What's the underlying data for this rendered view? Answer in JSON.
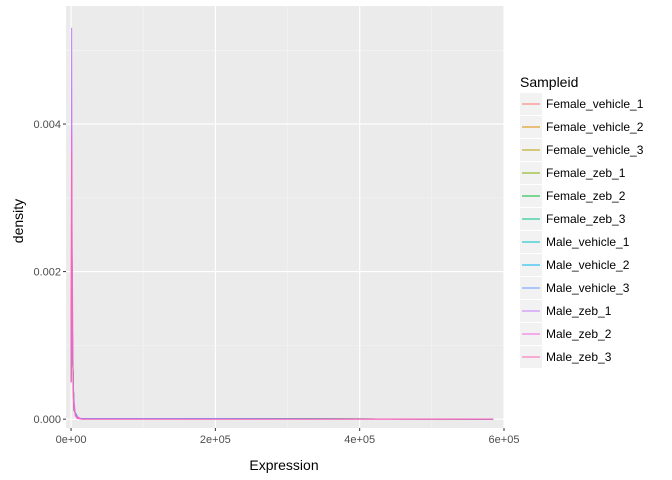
{
  "chart_data": {
    "type": "line",
    "xlabel": "Expression",
    "ylabel": "density",
    "xlim": [
      -7000,
      600000
    ],
    "ylim": [
      -0.00012,
      0.0056
    ],
    "x_ticks": [
      0,
      200000,
      400000,
      600000
    ],
    "x_tick_labels": [
      "0e+00",
      "2e+05",
      "4e+05",
      "6e+05"
    ],
    "y_ticks": [
      0,
      0.002,
      0.004
    ],
    "y_tick_labels": [
      "0.000",
      "0.002",
      "0.004"
    ],
    "grid": true,
    "legend": {
      "title": "Sampleid",
      "position": "right"
    },
    "series": [
      {
        "name": "Female_vehicle_1",
        "color": "#F8766D",
        "points": [
          [
            0,
            0.0005
          ],
          [
            1000,
            0.0028
          ],
          [
            2000,
            0.001
          ],
          [
            4000,
            0.00012
          ],
          [
            10000,
            1e-05
          ],
          [
            585000,
            0
          ]
        ]
      },
      {
        "name": "Female_vehicle_2",
        "color": "#DE8C00",
        "points": [
          [
            0,
            0.0005
          ],
          [
            1000,
            0.0027
          ],
          [
            2000,
            0.001
          ],
          [
            4000,
            0.00012
          ],
          [
            10000,
            1e-05
          ],
          [
            585000,
            0
          ]
        ]
      },
      {
        "name": "Female_vehicle_3",
        "color": "#B79F00",
        "points": [
          [
            0,
            0.0005
          ],
          [
            1000,
            0.0026
          ],
          [
            2000,
            0.001
          ],
          [
            4000,
            0.00012
          ],
          [
            10000,
            1e-05
          ],
          [
            585000,
            0
          ]
        ]
      },
      {
        "name": "Female_zeb_1",
        "color": "#7CAE00",
        "points": [
          [
            0,
            0.0005
          ],
          [
            1000,
            0.0026
          ],
          [
            2000,
            0.001
          ],
          [
            4000,
            0.00012
          ],
          [
            10000,
            1e-05
          ],
          [
            585000,
            0
          ]
        ]
      },
      {
        "name": "Female_zeb_2",
        "color": "#00BA38",
        "points": [
          [
            0,
            0.0005
          ],
          [
            1000,
            0.0027
          ],
          [
            2000,
            0.001
          ],
          [
            4000,
            0.00012
          ],
          [
            10000,
            1e-05
          ],
          [
            585000,
            0
          ]
        ]
      },
      {
        "name": "Female_zeb_3",
        "color": "#00C08B",
        "points": [
          [
            0,
            0.0005
          ],
          [
            1000,
            0.0026
          ],
          [
            2000,
            0.001
          ],
          [
            4000,
            0.00012
          ],
          [
            10000,
            1e-05
          ],
          [
            585000,
            0
          ]
        ]
      },
      {
        "name": "Male_vehicle_1",
        "color": "#00BFC4",
        "points": [
          [
            0,
            0.0005
          ],
          [
            1000,
            0.0027
          ],
          [
            2000,
            0.001
          ],
          [
            4000,
            0.00012
          ],
          [
            10000,
            1e-05
          ],
          [
            585000,
            0
          ]
        ]
      },
      {
        "name": "Male_vehicle_2",
        "color": "#00B4F0",
        "points": [
          [
            0,
            0.0005
          ],
          [
            1000,
            0.0027
          ],
          [
            2000,
            0.001
          ],
          [
            4000,
            0.00012
          ],
          [
            10000,
            1e-05
          ],
          [
            585000,
            0
          ]
        ]
      },
      {
        "name": "Male_vehicle_3",
        "color": "#619CFF",
        "points": [
          [
            0,
            0.0005
          ],
          [
            1000,
            0.0028
          ],
          [
            2000,
            0.001
          ],
          [
            4000,
            0.00012
          ],
          [
            10000,
            1e-05
          ],
          [
            585000,
            0
          ]
        ]
      },
      {
        "name": "Male_zeb_1",
        "color": "#C77CFF",
        "points": [
          [
            0,
            0.0005
          ],
          [
            800,
            0.0053
          ],
          [
            1500,
            0.0025
          ],
          [
            3000,
            0.0004
          ],
          [
            6000,
            5e-05
          ],
          [
            15000,
            0
          ],
          [
            585000,
            0
          ]
        ]
      },
      {
        "name": "Male_zeb_2",
        "color": "#F564E3",
        "points": [
          [
            0,
            0.0005
          ],
          [
            800,
            0.0039
          ],
          [
            1500,
            0.0017
          ],
          [
            3000,
            0.0003
          ],
          [
            6000,
            4e-05
          ],
          [
            15000,
            0
          ],
          [
            585000,
            0
          ]
        ]
      },
      {
        "name": "Male_zeb_3",
        "color": "#FF64B0",
        "points": [
          [
            0,
            0.0005
          ],
          [
            900,
            0.0036
          ],
          [
            1700,
            0.0014
          ],
          [
            3500,
            0.00015
          ],
          [
            8000,
            1e-05
          ],
          [
            15000,
            0
          ],
          [
            585000,
            0
          ]
        ]
      }
    ]
  }
}
